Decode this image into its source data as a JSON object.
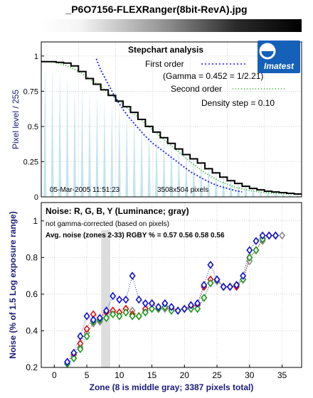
{
  "header": {
    "title": "_P6O7156-FLEXRanger(8bit-RevA).jpg"
  },
  "colors": {
    "title": "#7b1fa2",
    "frame": "#000000",
    "grid": "#bdbdbd",
    "density": "#000000",
    "first_order": "#1a1aff",
    "second_order": "#22aa22",
    "smear": "#b8e0ec",
    "noise_r": "#e01010",
    "noise_g": "#1e9a1e",
    "noise_b": "#1010d0",
    "noise_y": "#8a8a8a",
    "middle_gray_band": "#dddddd",
    "logo_bg": "#1560b8"
  },
  "logo": {
    "text": "Imatest",
    "icon": "imatest-logo-icon"
  },
  "chart_data": [
    {
      "type": "line",
      "title": "Stepchart analysis",
      "ylabel": "Pixel level / 255",
      "xlim": [
        0,
        35
      ],
      "ylim": [
        0,
        1.1
      ],
      "ytick_labels": [
        "0",
        "0.25",
        "0.5",
        "0.75",
        "1"
      ],
      "grid": true,
      "legend": {
        "first_order": "First order",
        "gamma": "(Gamma = 0.452 = 1/2.21)",
        "second_order": "Second order",
        "density_step": "Density step = 0.10"
      },
      "footer": {
        "date": "05-Mar-2005 11:51:23",
        "size": "3508x504 pixels"
      },
      "density_steps": [
        0.96,
        0.96,
        0.955,
        0.95,
        0.93,
        0.89,
        0.84,
        0.8,
        0.76,
        0.72,
        0.68,
        0.64,
        0.6,
        0.55,
        0.5,
        0.46,
        0.42,
        0.38,
        0.34,
        0.3,
        0.27,
        0.24,
        0.2,
        0.17,
        0.14,
        0.115,
        0.095,
        0.075,
        0.06,
        0.05,
        0.04,
        0.035,
        0.03,
        0.025,
        0.02
      ],
      "first_order": [
        [
          7.4,
          0.98
        ],
        [
          8,
          0.9
        ],
        [
          9,
          0.8
        ],
        [
          10,
          0.7
        ],
        [
          11,
          0.62
        ],
        [
          12,
          0.55
        ],
        [
          13,
          0.49
        ],
        [
          14,
          0.43
        ],
        [
          15,
          0.38
        ],
        [
          16,
          0.34
        ],
        [
          17,
          0.3
        ],
        [
          18,
          0.26
        ],
        [
          19,
          0.22
        ],
        [
          20,
          0.18
        ],
        [
          21,
          0.15
        ],
        [
          22,
          0.12
        ],
        [
          23,
          0.095
        ],
        [
          24,
          0.075
        ],
        [
          25,
          0.06
        ],
        [
          26,
          0.045
        ],
        [
          27,
          0.035
        ]
      ],
      "second_order": [
        [
          0,
          0.965
        ],
        [
          2,
          0.955
        ],
        [
          4,
          0.92
        ],
        [
          6,
          0.86
        ],
        [
          8,
          0.78
        ],
        [
          10,
          0.7
        ],
        [
          12,
          0.61
        ],
        [
          14,
          0.52
        ],
        [
          16,
          0.43
        ],
        [
          18,
          0.34
        ],
        [
          20,
          0.25
        ],
        [
          22,
          0.17
        ],
        [
          24,
          0.11
        ],
        [
          26,
          0.07
        ],
        [
          28,
          0.045
        ],
        [
          30,
          0.03
        ],
        [
          33,
          0.02
        ],
        [
          35,
          0.02
        ]
      ],
      "smear_peaks": [
        0.96,
        0.94,
        0.92,
        0.88,
        0.82,
        0.8,
        0.76,
        0.75,
        0.72,
        0.68,
        0.66,
        0.62,
        0.6,
        0.56,
        0.52,
        0.48,
        0.46,
        0.42,
        0.38,
        0.34,
        0.3,
        0.28,
        0.24,
        0.2,
        0.18,
        0.15,
        0.12,
        0.1,
        0.08,
        0.06,
        0.05,
        0.04,
        0.03,
        0.02,
        0.02
      ]
    },
    {
      "type": "line",
      "title": "Noise: R, G, B, Y (Luminance; gray)",
      "subtitle": "not gamma-corrected (based on pixels)",
      "avg_noise": "Avg. noise (zones 2-33) RGBY % = 0.57  0.56  0.58  0.56",
      "ylabel": "Noise (% of 1.5 Log exposure range)",
      "xlabel": "Zone  (8 is middle gray;  3387 pixels total)",
      "xlim": [
        -2,
        38
      ],
      "ylim": [
        0.2,
        1.1
      ],
      "xticks": [
        0,
        5,
        10,
        15,
        20,
        25,
        30,
        35
      ],
      "ytick_labels": [
        "0.2",
        "0.4",
        "0.6",
        "0.8",
        "1"
      ],
      "middle_gray_band": [
        7.2,
        8.6
      ],
      "series": [
        {
          "key": "r",
          "x": [
            2,
            3,
            4,
            5,
            6,
            7,
            8,
            9,
            10,
            11,
            12,
            13,
            14,
            15,
            16,
            17,
            18,
            19,
            20,
            21,
            22,
            23,
            24,
            25,
            26,
            27,
            28,
            29,
            30,
            31,
            32,
            33,
            34
          ],
          "values": [
            0.23,
            0.27,
            0.33,
            0.41,
            0.49,
            0.47,
            0.5,
            0.51,
            0.5,
            0.52,
            0.49,
            0.48,
            0.52,
            0.55,
            0.52,
            0.53,
            0.52,
            0.51,
            0.52,
            0.53,
            0.54,
            0.64,
            0.68,
            0.68,
            0.64,
            0.64,
            0.64,
            0.68,
            0.8,
            0.84,
            0.9,
            0.92,
            0.92
          ]
        },
        {
          "key": "g",
          "x": [
            2,
            3,
            4,
            5,
            6,
            7,
            8,
            9,
            10,
            11,
            12,
            13,
            14,
            15,
            16,
            17,
            18,
            19,
            20,
            21,
            22,
            23,
            24,
            25,
            26,
            27,
            28,
            29,
            30,
            31,
            32,
            33,
            34
          ],
          "values": [
            0.22,
            0.25,
            0.3,
            0.37,
            0.45,
            0.46,
            0.47,
            0.49,
            0.48,
            0.5,
            0.48,
            0.48,
            0.5,
            0.52,
            0.52,
            0.53,
            0.51,
            0.51,
            0.52,
            0.52,
            0.52,
            0.58,
            0.66,
            0.68,
            0.64,
            0.64,
            0.65,
            0.68,
            0.8,
            0.84,
            0.9,
            0.92,
            0.92
          ]
        },
        {
          "key": "b",
          "x": [
            2,
            3,
            4,
            5,
            6,
            7,
            8,
            9,
            10,
            11,
            12,
            13,
            14,
            15,
            16,
            17,
            18,
            19,
            20,
            21,
            22,
            23,
            24,
            25,
            26,
            27,
            28,
            29,
            30,
            31,
            32,
            33,
            34
          ],
          "values": [
            0.23,
            0.28,
            0.37,
            0.48,
            0.46,
            0.47,
            0.51,
            0.59,
            0.57,
            0.57,
            0.7,
            0.57,
            0.55,
            0.55,
            0.53,
            0.55,
            0.53,
            0.51,
            0.52,
            0.54,
            0.55,
            0.65,
            0.76,
            0.68,
            0.64,
            0.64,
            0.65,
            0.7,
            0.84,
            0.89,
            0.92,
            0.92,
            0.92
          ]
        },
        {
          "key": "y",
          "x": [
            2,
            3,
            4,
            5,
            6,
            7,
            8,
            9,
            10,
            11,
            12,
            13,
            14,
            15,
            16,
            17,
            18,
            19,
            20,
            21,
            22,
            23,
            24,
            25,
            26,
            27,
            28,
            29,
            30,
            31,
            32,
            33,
            34,
            35
          ],
          "values": [
            0.22,
            0.25,
            0.31,
            0.39,
            0.44,
            0.45,
            0.47,
            0.5,
            0.5,
            0.52,
            0.51,
            0.48,
            0.51,
            0.52,
            0.52,
            0.52,
            0.52,
            0.51,
            0.52,
            0.52,
            0.52,
            0.58,
            0.66,
            0.67,
            0.64,
            0.64,
            0.65,
            0.68,
            0.78,
            0.84,
            0.89,
            0.92,
            0.92,
            0.92
          ]
        }
      ]
    }
  ]
}
